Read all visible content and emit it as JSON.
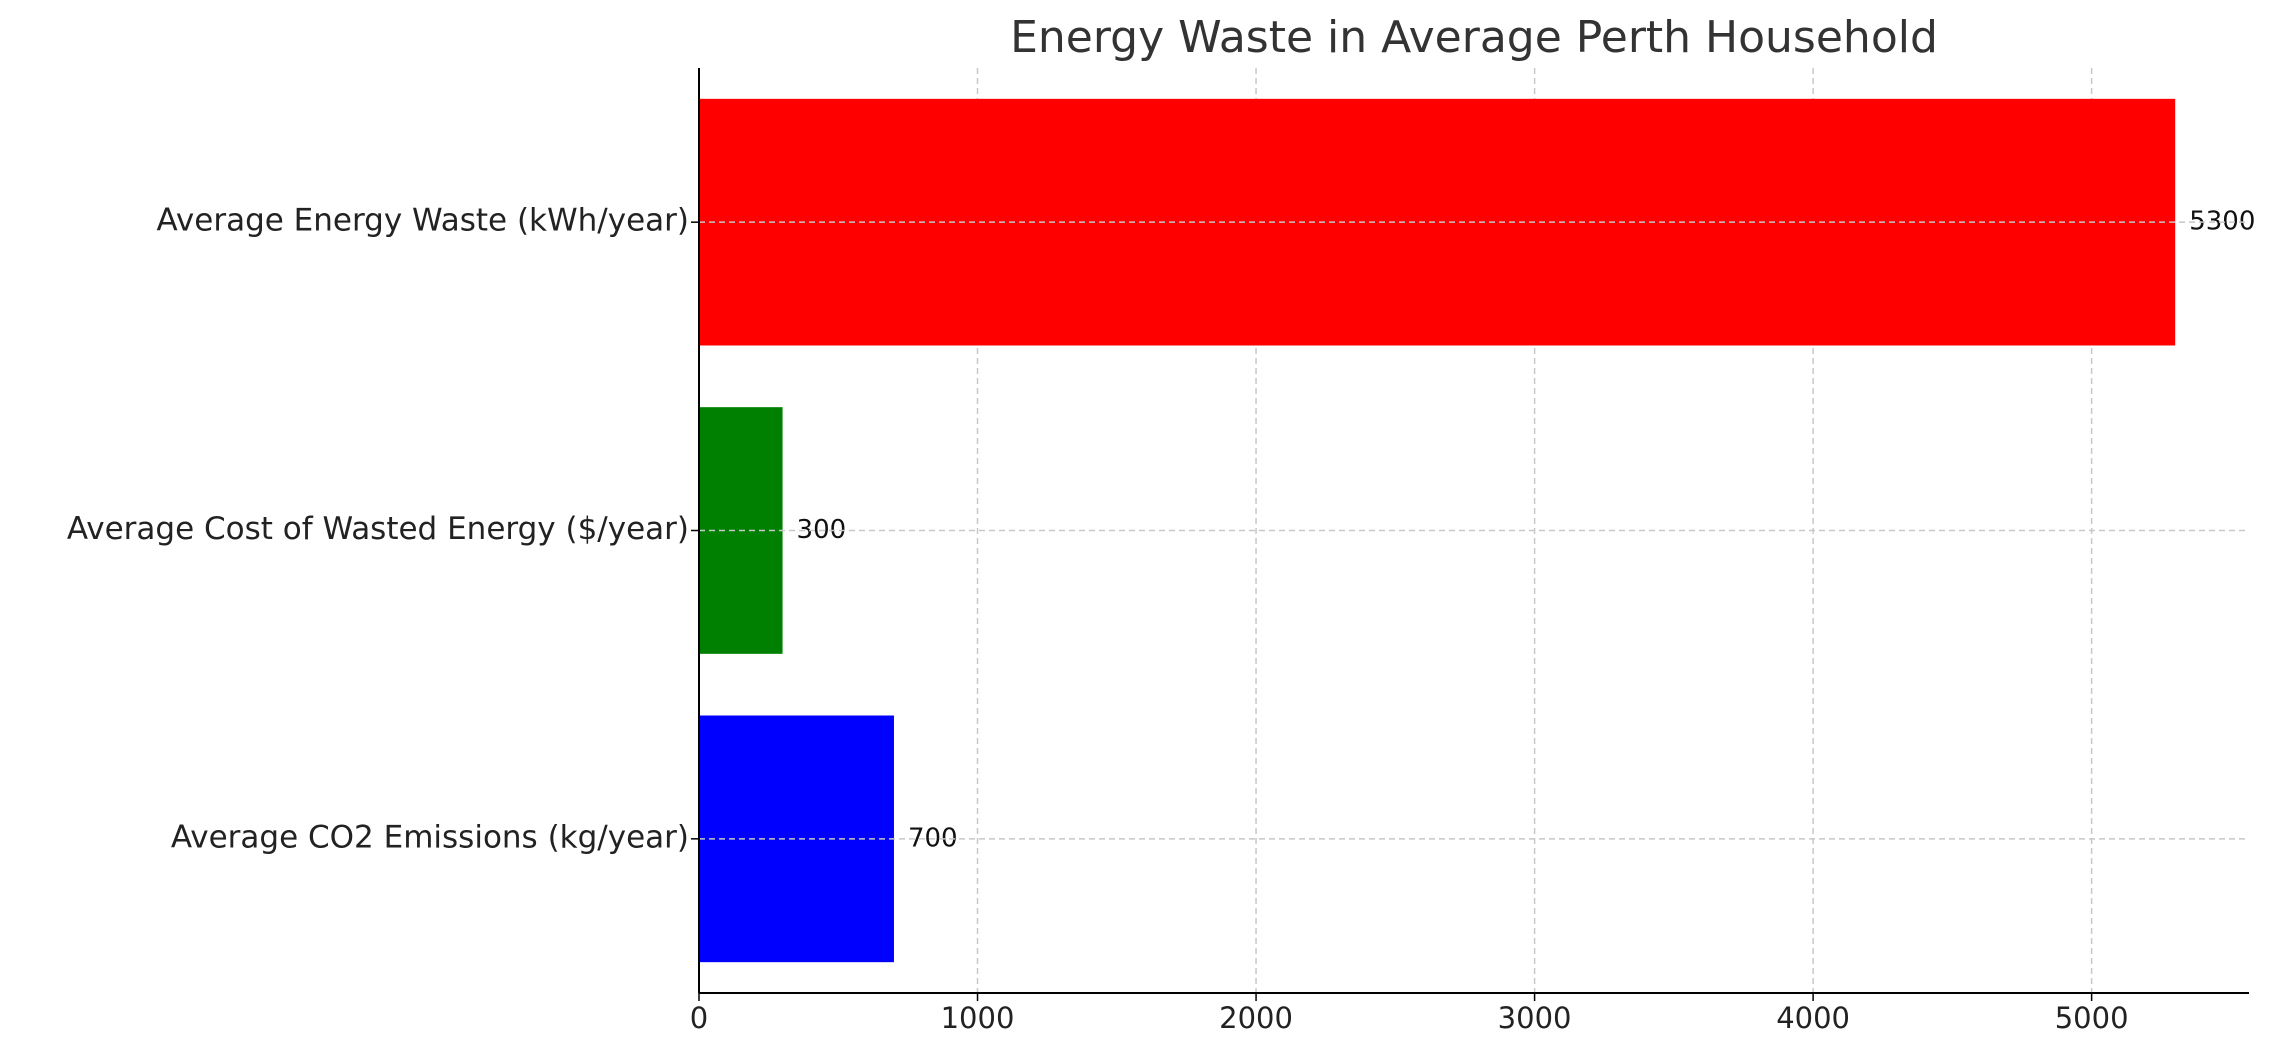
{
  "chart_data": {
    "type": "barh",
    "title": "Energy Waste in Average Perth Household",
    "categories": [
      "Average Energy Waste (kWh/year)",
      "Average Cost of Wasted Energy ($/year)",
      "Average CO2 Emissions (kg/year)"
    ],
    "values": [
      5300,
      300,
      700
    ],
    "colors": [
      "#ff0000",
      "#008000",
      "#0000ff"
    ],
    "xlim": [
      0,
      5565
    ],
    "xticks": [
      0,
      1000,
      2000,
      3000,
      4000,
      5000
    ],
    "grid": true
  }
}
